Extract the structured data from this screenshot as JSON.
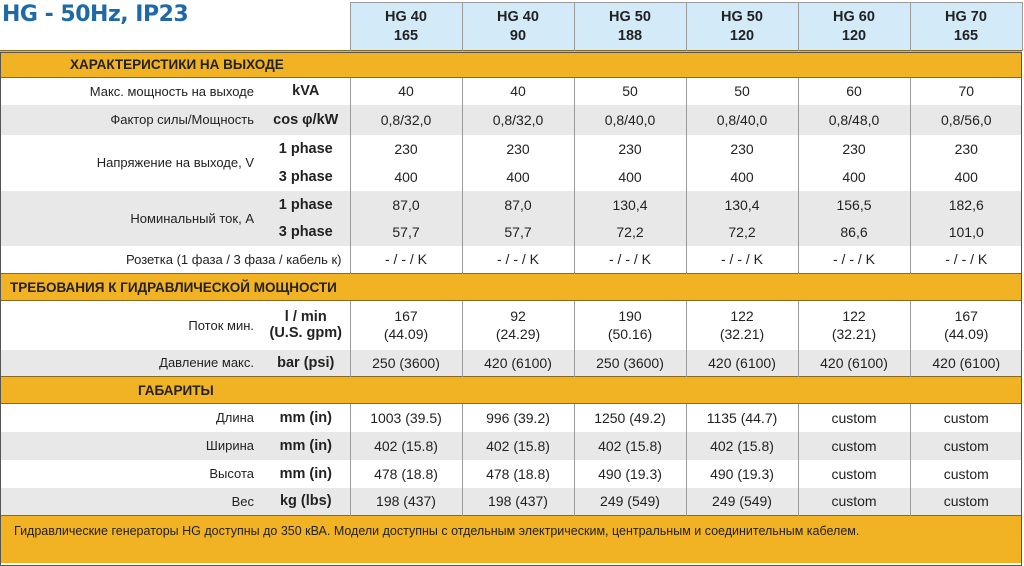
{
  "title": "HG - 50Hz, IP23",
  "models": [
    {
      "name": "HG 40",
      "code": "165"
    },
    {
      "name": "HG 40",
      "code": "90"
    },
    {
      "name": "HG 50",
      "code": "188"
    },
    {
      "name": "HG 50",
      "code": "120"
    },
    {
      "name": "HG 60",
      "code": "120"
    },
    {
      "name": "HG 70",
      "code": "165"
    }
  ],
  "sections": [
    {
      "title": "ХАРАКТЕРИСТИКИ НА ВЫХОДЕ",
      "indent": 70,
      "rows": [
        {
          "label": "Макс. мощность на выходе",
          "unit": "kVA",
          "values": [
            "40",
            "40",
            "50",
            "50",
            "60",
            "70"
          ],
          "h": 27
        },
        {
          "label": "Фактор силы/Мощность",
          "unit": "cos φ/kW",
          "values": [
            "0,8/32,0",
            "0,8/32,0",
            "0,8/40,0",
            "0,8/40,0",
            "0,8/48,0",
            "0,8/56,0"
          ],
          "h": 30,
          "grey": true
        },
        {
          "label": "Напряжение на выходе, V",
          "unit": "1 phase",
          "values": [
            "230",
            "230",
            "230",
            "230",
            "230",
            "230"
          ],
          "h": 28,
          "span": 2
        },
        {
          "unit": "3 phase",
          "values": [
            "400",
            "400",
            "400",
            "400",
            "400",
            "400"
          ],
          "h": 28
        },
        {
          "label": "Номинальный ток, A",
          "unit": "1 phase",
          "values": [
            "87,0",
            "87,0",
            "130,4",
            "130,4",
            "156,5",
            "182,6"
          ],
          "h": 28,
          "span": 2,
          "grey": true
        },
        {
          "unit": "3 phase",
          "values": [
            "57,7",
            "57,7",
            "72,2",
            "72,2",
            "86,6",
            "101,0"
          ],
          "h": 27,
          "grey": true
        },
        {
          "label": "Розетка (1 фаза / 3 фаза / кабель к)",
          "unit": "",
          "values": [
            "- / - / K",
            "- / - / K",
            "- / - / K",
            "- / - / K",
            "- / - / K",
            "- / - / K"
          ],
          "h": 28,
          "wide": true
        }
      ]
    },
    {
      "title": "ТРЕБОВАНИЯ К ГИДРАВЛИЧЕСКОЙ МОЩНОСТИ",
      "indent": 10,
      "rows": [
        {
          "label": "Поток мин.",
          "unit": "l / min\n(U.S. gpm)",
          "values": [
            "167\n(44.09)",
            "92\n(24.29)",
            "190\n(50.16)",
            "122\n(32.21)",
            "122\n(32.21)",
            "167\n(44.09)"
          ],
          "h": 49
        },
        {
          "label": "Давление макс.",
          "unit": "bar (psi)",
          "values": [
            "250 (3600)",
            "420 (6100)",
            "250 (3600)",
            "420 (6100)",
            "420 (6100)",
            "420 (6100)"
          ],
          "h": 27,
          "grey": true
        }
      ]
    },
    {
      "title": "ГАБАРИТЫ",
      "indent": 138,
      "rows": [
        {
          "label": "Длина",
          "unit": "mm (in)",
          "values": [
            "1003 (39.5)",
            "996 (39.2)",
            "1250 (49.2)",
            "1135 (44.7)",
            "custom",
            "custom"
          ],
          "h": 28
        },
        {
          "label": "Ширина",
          "unit": "mm (in)",
          "values": [
            "402 (15.8)",
            "402 (15.8)",
            "402 (15.8)",
            "402 (15.8)",
            "custom",
            "custom"
          ],
          "h": 28,
          "grey": true
        },
        {
          "label": "Высота",
          "unit": "mm (in)",
          "values": [
            "478 (18.8)",
            "478 (18.8)",
            "490 (19.3)",
            "490 (19.3)",
            "custom",
            "custom"
          ],
          "h": 28
        },
        {
          "label": "Вес",
          "unit": "kg (lbs)",
          "values": [
            "198 (437)",
            "198 (437)",
            "249 (549)",
            "249 (549)",
            "custom",
            "custom"
          ],
          "h": 28,
          "grey": true
        }
      ]
    }
  ],
  "footer": "Гидравлические генераторы HG доступны до 350 кВА. Модели доступны с отдельным электрическим, центральным и соединительным кабелем."
}
